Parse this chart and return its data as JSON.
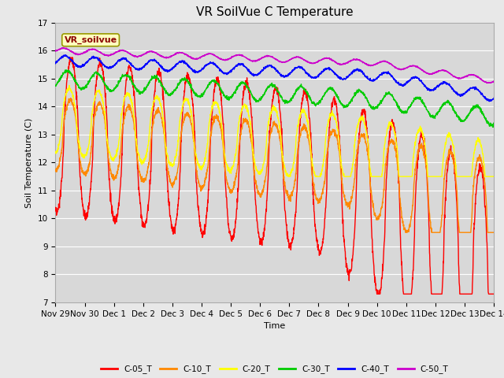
{
  "title": "VR SoilVue C Temperature",
  "xlabel": "Time",
  "ylabel": "Soil Temperature (C)",
  "ylim": [
    7.0,
    17.0
  ],
  "yticks": [
    7.0,
    8.0,
    9.0,
    10.0,
    11.0,
    12.0,
    13.0,
    14.0,
    15.0,
    16.0,
    17.0
  ],
  "legend_label": "VR_soilvue",
  "series_labels": [
    "C-05_T",
    "C-10_T",
    "C-20_T",
    "C-30_T",
    "C-40_T",
    "C-50_T"
  ],
  "series_colors": [
    "#ff0000",
    "#ff8800",
    "#ffff00",
    "#00cc00",
    "#0000ff",
    "#cc00cc"
  ],
  "background_color": "#e8e8e8",
  "plot_bg_color": "#d8d8d8",
  "n_days": 16,
  "title_fontsize": 11,
  "label_fontsize": 8,
  "tick_fontsize": 7.5
}
